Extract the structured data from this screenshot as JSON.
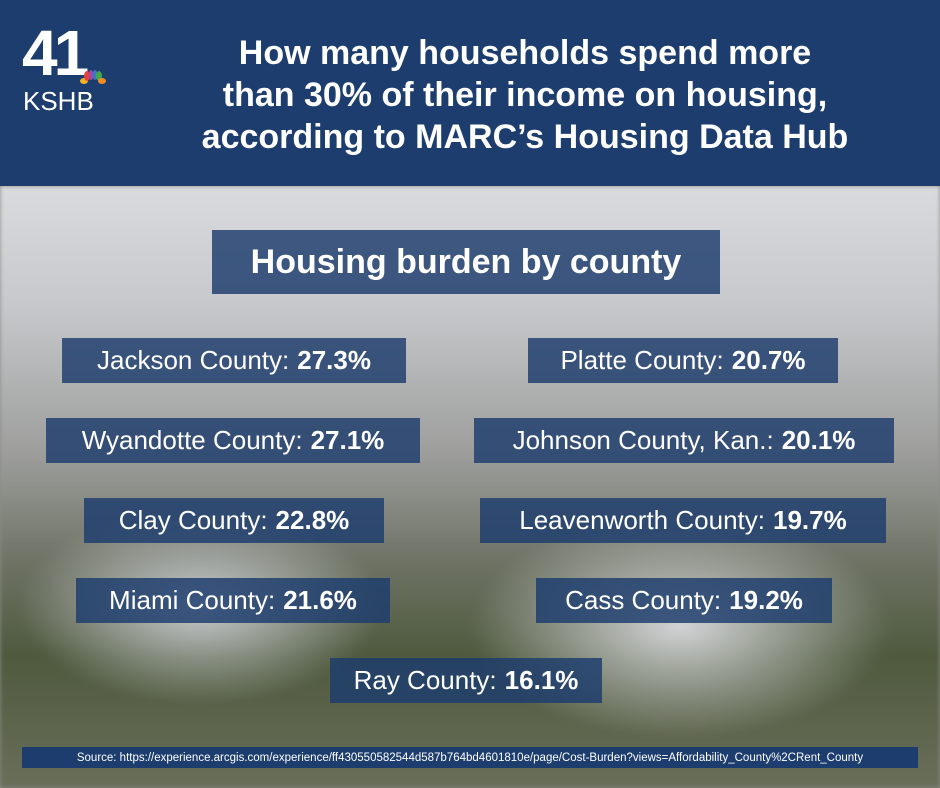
{
  "header": {
    "logo_number": "41",
    "logo_call": "KSHB",
    "headline_lines": [
      "How many households spend more",
      "than 30% of their income on housing,",
      "according to MARC’s Housing Data Hub"
    ]
  },
  "subtitle": "Housing burden by county",
  "counties": [
    {
      "label": "Jackson County:",
      "value": "27.3%"
    },
    {
      "label": "Platte County:",
      "value": "20.7%"
    },
    {
      "label": "Wyandotte County:",
      "value": "27.1%"
    },
    {
      "label": "Johnson County, Kan.:",
      "value": "20.1%"
    },
    {
      "label": "Clay County:",
      "value": "22.8%"
    },
    {
      "label": "Leavenworth County:",
      "value": "19.7%"
    },
    {
      "label": "Miami County:",
      "value": "21.6%"
    },
    {
      "label": "Cass County:",
      "value": "19.2%"
    },
    {
      "label": "Ray County:",
      "value": "16.1%"
    }
  ],
  "source": "Source: https://experience.arcgis.com/experience/ff430550582544d587b764bd4601810e/page/Cost-Burden?views=Affordability_County%2CRent_County",
  "colors": {
    "navy": "#1c3d6d"
  }
}
